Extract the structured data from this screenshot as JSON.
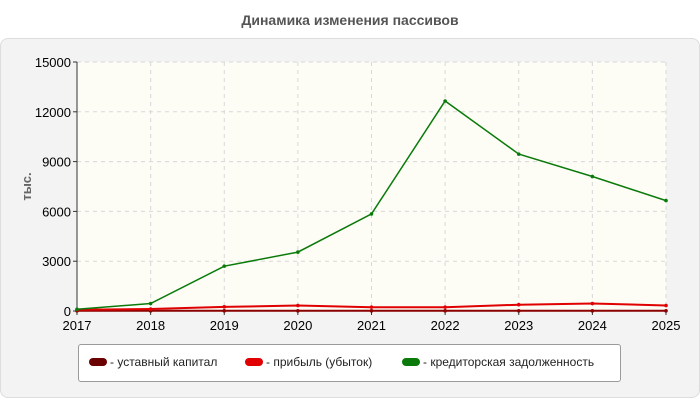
{
  "chart_data": {
    "type": "line",
    "title": "Динамика изменения пассивов",
    "ylabel": "тыс.",
    "xlabel": "",
    "x": [
      "2017",
      "2018",
      "2019",
      "2020",
      "2021",
      "2022",
      "2023",
      "2024",
      "2025"
    ],
    "ylim": [
      0,
      15000
    ],
    "yticks": [
      "0",
      "3000",
      "6000",
      "9000",
      "12000",
      "15000"
    ],
    "grid": true,
    "legend_position": "bottom",
    "series": [
      {
        "name": "- уставный капитал",
        "color": "#8b0000",
        "values": [
          10,
          10,
          10,
          10,
          10,
          10,
          10,
          10,
          10
        ]
      },
      {
        "name": "- прибыль (убыток)",
        "color": "#e00000",
        "values": [
          80,
          120,
          250,
          330,
          230,
          230,
          380,
          450,
          330
        ]
      },
      {
        "name": "- кредиторская задолженность",
        "color": "#0a7a0a",
        "values": [
          100,
          450,
          2700,
          3550,
          5850,
          12650,
          9450,
          8100,
          6650
        ]
      }
    ]
  }
}
